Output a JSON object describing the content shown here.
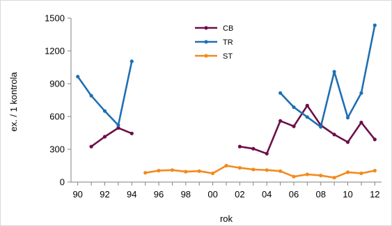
{
  "chart_data": {
    "type": "line",
    "xlabel": "rok",
    "ylabel": "ex. / 1 kontrola",
    "ylim": [
      0,
      1500
    ],
    "y_ticks": [
      0,
      300,
      600,
      900,
      1200,
      1500
    ],
    "x_tick_values": [
      1990,
      1992,
      1994,
      1996,
      1998,
      2000,
      2002,
      2004,
      2006,
      2008,
      2010,
      2012
    ],
    "x_tick_labels": [
      "90",
      "92",
      "94",
      "96",
      "98",
      "00",
      "02",
      "04",
      "06",
      "08",
      "10",
      "12"
    ],
    "x_range": [
      1989.5,
      2012.5
    ],
    "grid": false,
    "legend_position": "top-center",
    "series": [
      {
        "name": "CB",
        "color": "#6b0f4a",
        "points": [
          [
            1991,
            325
          ],
          [
            1992,
            415
          ],
          [
            1993,
            495
          ],
          [
            1994,
            445
          ],
          [
            2002,
            325
          ],
          [
            2003,
            305
          ],
          [
            2004,
            260
          ],
          [
            2005,
            560
          ],
          [
            2006,
            510
          ],
          [
            2007,
            700
          ],
          [
            2008,
            520
          ],
          [
            2009,
            435
          ],
          [
            2010,
            365
          ],
          [
            2011,
            545
          ],
          [
            2012,
            390
          ]
        ]
      },
      {
        "name": "TR",
        "color": "#1f6fb2",
        "points": [
          [
            1990,
            965
          ],
          [
            1991,
            790
          ],
          [
            1992,
            650
          ],
          [
            1993,
            520
          ],
          [
            1994,
            1105
          ],
          [
            2005,
            815
          ],
          [
            2006,
            685
          ],
          [
            2007,
            595
          ],
          [
            2008,
            505
          ],
          [
            2009,
            1010
          ],
          [
            2010,
            590
          ],
          [
            2011,
            815
          ],
          [
            2012,
            1435
          ]
        ]
      },
      {
        "name": "ST",
        "color": "#f28a1c",
        "points": [
          [
            1995,
            85
          ],
          [
            1996,
            105
          ],
          [
            1997,
            110
          ],
          [
            1998,
            95
          ],
          [
            1999,
            100
          ],
          [
            2000,
            80
          ],
          [
            2001,
            150
          ],
          [
            2002,
            130
          ],
          [
            2003,
            115
          ],
          [
            2004,
            110
          ],
          [
            2005,
            100
          ],
          [
            2006,
            50
          ],
          [
            2007,
            70
          ],
          [
            2008,
            60
          ],
          [
            2009,
            40
          ],
          [
            2010,
            90
          ],
          [
            2011,
            80
          ],
          [
            2012,
            105
          ]
        ]
      }
    ]
  }
}
